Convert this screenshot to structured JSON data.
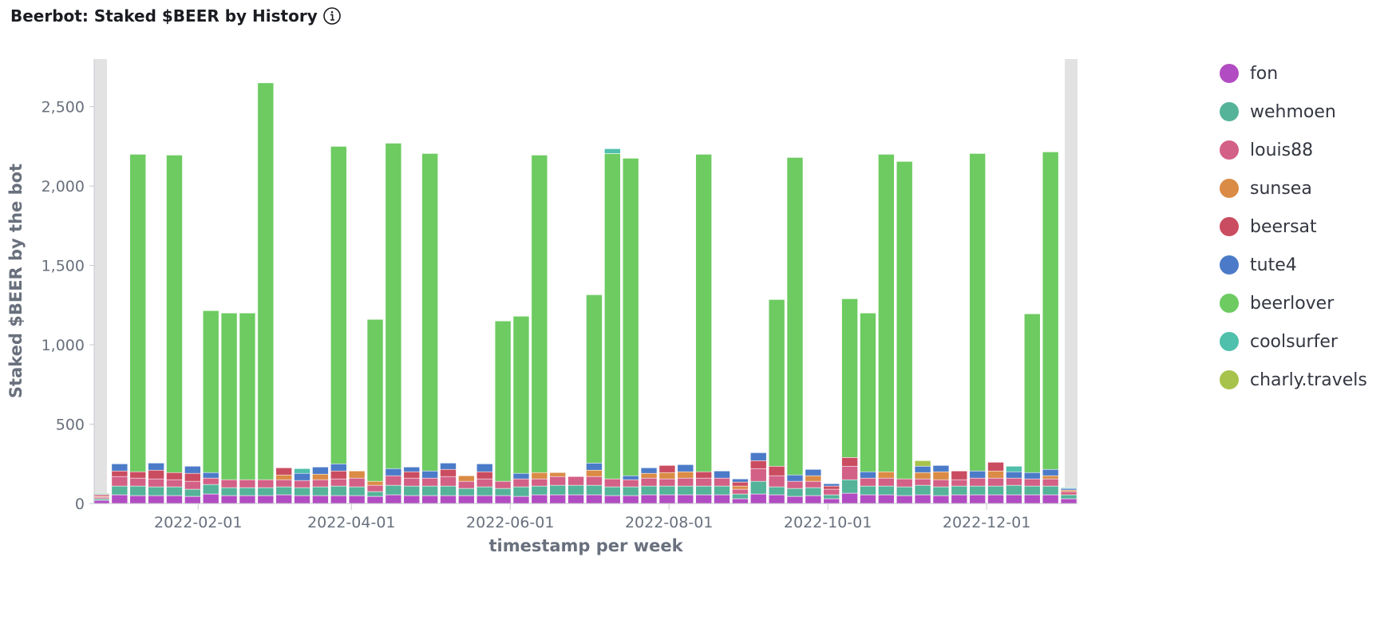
{
  "header": {
    "title": "Beerbot: Staked $BEER by History",
    "info_icon": "info-icon"
  },
  "colors": {
    "fon": "#b24cc2",
    "wehmoen": "#54b399",
    "louis88": "#d36086",
    "sunsea": "#da8b45",
    "beersat": "#ca4c60",
    "tute4": "#4b7bc8",
    "beerlover": "#6dcb61",
    "coolsurfer": "#4fc0ab",
    "charly.travels": "#a7c34b"
  },
  "chart_data": {
    "type": "bar",
    "stacked": true,
    "title": "Beerbot: Staked $BEER by History",
    "xlabel": "timestamp per week",
    "ylabel": "Staked $BEER by the bot",
    "ylim": [
      0,
      2800
    ],
    "yticks": [
      0,
      500,
      1000,
      1500,
      2000,
      2500
    ],
    "ytick_labels": [
      "0",
      "500",
      "1,000",
      "1,500",
      "2,000",
      "2,500"
    ],
    "xticks": [
      "2022-02-01",
      "2022-04-01",
      "2022-06-01",
      "2022-08-01",
      "2022-10-01",
      "2022-12-01"
    ],
    "xtick_index": [
      5.3,
      13.7,
      22.4,
      31.1,
      39.8,
      48.5
    ],
    "categories": [
      "2021-12-27",
      "2022-01-03",
      "2022-01-10",
      "2022-01-17",
      "2022-01-24",
      "2022-01-31",
      "2022-02-07",
      "2022-02-14",
      "2022-02-21",
      "2022-02-28",
      "2022-03-07",
      "2022-03-14",
      "2022-03-21",
      "2022-03-28",
      "2022-04-04",
      "2022-04-11",
      "2022-04-18",
      "2022-04-25",
      "2022-05-02",
      "2022-05-09",
      "2022-05-16",
      "2022-05-23",
      "2022-05-30",
      "2022-06-06",
      "2022-06-13",
      "2022-06-20",
      "2022-06-27",
      "2022-07-04",
      "2022-07-11",
      "2022-07-18",
      "2022-07-25",
      "2022-08-01",
      "2022-08-08",
      "2022-08-15",
      "2022-08-22",
      "2022-08-29",
      "2022-09-05",
      "2022-09-12",
      "2022-09-19",
      "2022-09-26",
      "2022-10-03",
      "2022-10-10",
      "2022-10-17",
      "2022-10-24",
      "2022-10-31",
      "2022-11-07",
      "2022-11-14",
      "2022-11-21",
      "2022-11-28",
      "2022-12-05",
      "2022-12-12",
      "2022-12-19",
      "2022-12-26",
      "2023-01-02"
    ],
    "series": [
      {
        "name": "fon",
        "values": [
          20,
          55,
          50,
          50,
          50,
          45,
          60,
          50,
          50,
          50,
          55,
          50,
          50,
          50,
          50,
          45,
          55,
          50,
          50,
          50,
          50,
          50,
          50,
          45,
          55,
          55,
          55,
          55,
          50,
          50,
          55,
          55,
          55,
          55,
          55,
          30,
          60,
          55,
          45,
          50,
          30,
          65,
          55,
          55,
          50,
          55,
          50,
          55,
          55,
          55,
          55,
          55,
          55,
          30
        ]
      },
      {
        "name": "wehmoen",
        "values": [
          10,
          55,
          60,
          55,
          55,
          45,
          60,
          50,
          50,
          50,
          50,
          50,
          55,
          60,
          55,
          30,
          60,
          60,
          60,
          60,
          45,
          55,
          45,
          60,
          55,
          60,
          60,
          60,
          55,
          55,
          55,
          55,
          55,
          55,
          55,
          30,
          80,
          50,
          50,
          50,
          25,
          85,
          55,
          55,
          55,
          60,
          55,
          55,
          55,
          55,
          60,
          55,
          55,
          25
        ]
      },
      {
        "name": "louis88",
        "values": [
          10,
          60,
          50,
          50,
          45,
          50,
          40,
          50,
          50,
          50,
          45,
          45,
          45,
          45,
          55,
          40,
          60,
          50,
          50,
          60,
          45,
          50,
          45,
          50,
          45,
          55,
          55,
          55,
          50,
          45,
          50,
          45,
          50,
          50,
          50,
          30,
          80,
          70,
          45,
          40,
          35,
          85,
          50,
          50,
          50,
          40,
          45,
          40,
          50,
          50,
          45,
          45,
          45,
          20
        ]
      },
      {
        "name": "sunsea",
        "values": [
          5,
          0,
          0,
          0,
          0,
          0,
          0,
          0,
          0,
          0,
          30,
          0,
          35,
          0,
          45,
          25,
          0,
          0,
          0,
          0,
          35,
          0,
          0,
          0,
          40,
          25,
          0,
          40,
          0,
          0,
          30,
          40,
          40,
          0,
          0,
          20,
          0,
          0,
          0,
          35,
          0,
          0,
          0,
          40,
          0,
          40,
          50,
          0,
          0,
          45,
          0,
          0,
          20,
          10
        ]
      },
      {
        "name": "beersat",
        "values": [
          10,
          35,
          40,
          55,
          45,
          50,
          0,
          0,
          0,
          0,
          45,
          0,
          0,
          50,
          0,
          0,
          0,
          40,
          0,
          45,
          0,
          45,
          0,
          0,
          0,
          0,
          0,
          0,
          0,
          0,
          0,
          45,
          0,
          40,
          0,
          25,
          50,
          60,
          0,
          0,
          20,
          55,
          0,
          0,
          0,
          0,
          0,
          55,
          0,
          55,
          0,
          0,
          0,
          0
        ]
      },
      {
        "name": "tute4",
        "values": [
          5,
          45,
          0,
          45,
          0,
          45,
          35,
          0,
          0,
          0,
          0,
          45,
          45,
          45,
          0,
          0,
          45,
          30,
          45,
          40,
          0,
          50,
          0,
          35,
          0,
          0,
          0,
          45,
          0,
          25,
          35,
          0,
          45,
          0,
          45,
          20,
          50,
          0,
          40,
          40,
          15,
          0,
          40,
          0,
          0,
          40,
          40,
          0,
          45,
          0,
          40,
          40,
          40,
          10
        ]
      },
      {
        "name": "beerlover",
        "values": [
          5,
          0,
          2000,
          0,
          2000,
          0,
          1020,
          1050,
          1050,
          2500,
          0,
          0,
          0,
          2000,
          0,
          1020,
          2050,
          0,
          2000,
          0,
          0,
          0,
          1010,
          990,
          2000,
          0,
          0,
          1060,
          2050,
          2000,
          0,
          0,
          0,
          2000,
          0,
          0,
          0,
          1050,
          2000,
          0,
          0,
          1000,
          1000,
          2000,
          2000,
          0,
          0,
          0,
          2000,
          0,
          0,
          1000,
          2000,
          0
        ]
      },
      {
        "name": "coolsurfer",
        "values": [
          0,
          0,
          0,
          0,
          0,
          0,
          0,
          0,
          0,
          0,
          0,
          30,
          0,
          0,
          0,
          0,
          0,
          0,
          0,
          0,
          0,
          0,
          0,
          0,
          0,
          0,
          0,
          0,
          30,
          0,
          0,
          0,
          0,
          0,
          0,
          0,
          0,
          0,
          0,
          0,
          0,
          0,
          0,
          0,
          0,
          0,
          0,
          0,
          0,
          0,
          35,
          0,
          0,
          5
        ]
      },
      {
        "name": "charly.travels",
        "values": [
          0,
          0,
          0,
          0,
          0,
          0,
          0,
          0,
          0,
          0,
          0,
          0,
          0,
          0,
          0,
          0,
          0,
          0,
          0,
          0,
          0,
          0,
          0,
          0,
          0,
          0,
          0,
          0,
          0,
          0,
          0,
          0,
          0,
          0,
          0,
          0,
          0,
          0,
          0,
          0,
          0,
          0,
          0,
          0,
          0,
          35,
          0,
          0,
          0,
          0,
          0,
          0,
          0,
          0
        ]
      }
    ],
    "legend": [
      "fon",
      "wehmoen",
      "louis88",
      "sunsea",
      "beersat",
      "tute4",
      "beerlover",
      "coolsurfer",
      "charly.travels"
    ],
    "legend_position": "right"
  }
}
